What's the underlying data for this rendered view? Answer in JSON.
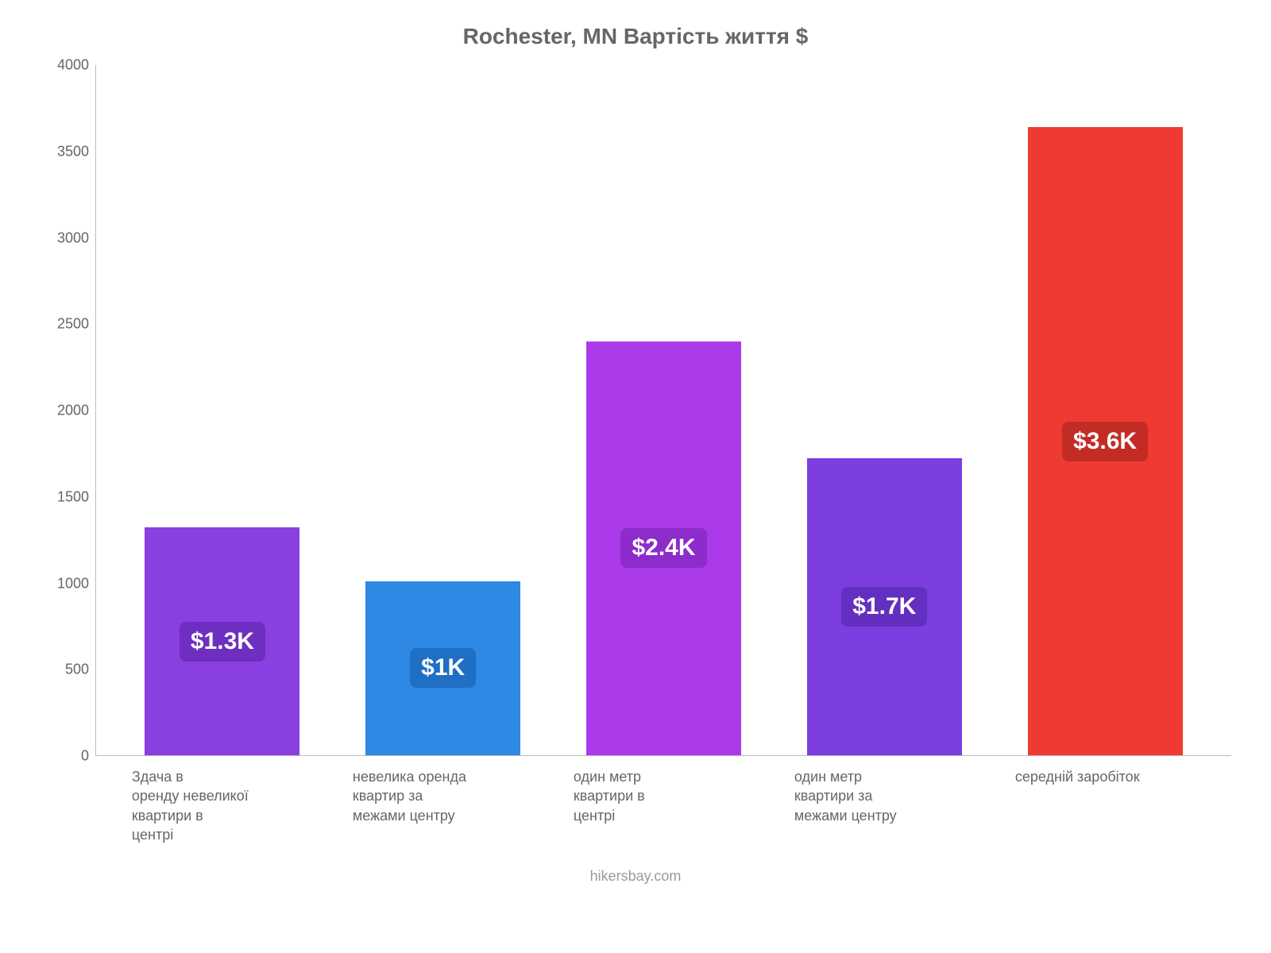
{
  "chart": {
    "type": "bar",
    "title": "Rochester, MN Вартість життя $",
    "title_fontsize": 28,
    "title_color": "#666666",
    "background_color": "#ffffff",
    "axis_color": "#bbbbbb",
    "tick_color": "#666666",
    "tick_fontsize": 18,
    "xlabel_fontsize": 18,
    "ylim": [
      0,
      4000
    ],
    "ytick_step": 500,
    "yticks": [
      0,
      500,
      1000,
      1500,
      2000,
      2500,
      3000,
      3500,
      4000
    ],
    "bar_width": 0.78,
    "value_label_fontsize": 30,
    "value_label_text_color": "#ffffff",
    "value_label_radius": 8,
    "categories": [
      "Здача в оренду невеликої квартири в центрі",
      "невелика оренда квартир за межами центру",
      "один метр квартири в центрі",
      "один метр квартири за межами центру",
      "середній заробіток"
    ],
    "values": [
      1320,
      1010,
      2400,
      1720,
      3640
    ],
    "value_labels": [
      "$1.3K",
      "$1K",
      "$2.4K",
      "$1.7K",
      "$3.6K"
    ],
    "bar_colors": [
      "#8a3fe0",
      "#2e89e4",
      "#ab3aea",
      "#7d3ee0",
      "#ee3a32"
    ],
    "label_bg_colors": [
      "#6e2fc0",
      "#1f6fc4",
      "#8e2bcb",
      "#632fc0",
      "#c22c25"
    ],
    "source": "hikersbay.com",
    "source_color": "#999999",
    "source_fontsize": 18
  }
}
